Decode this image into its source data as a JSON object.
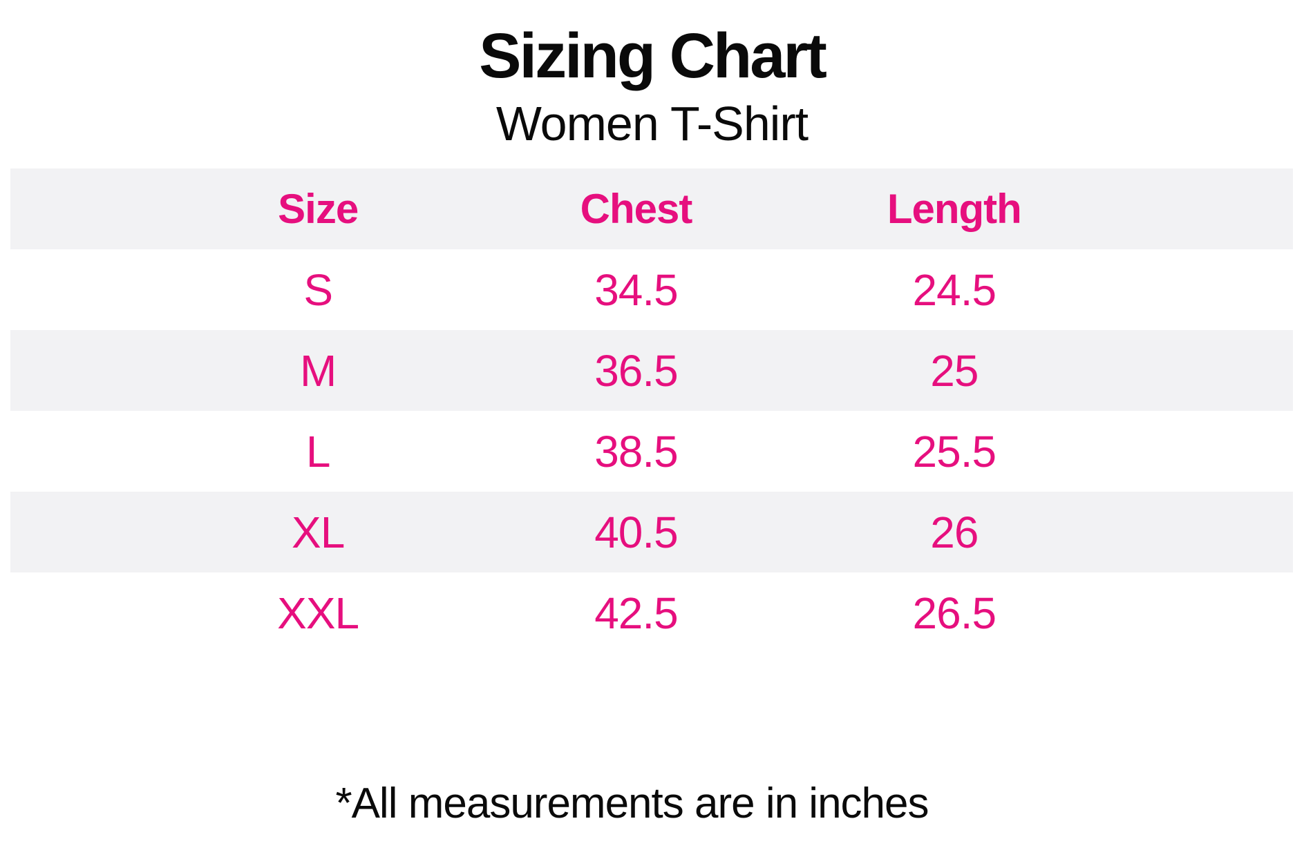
{
  "page": {
    "title": "Sizing Chart",
    "subtitle": "Women T-Shirt",
    "note": "*All measurements are in inches"
  },
  "table": {
    "columns": [
      "Size",
      "Chest",
      "Length"
    ],
    "rows": [
      [
        "S",
        "34.5",
        "24.5"
      ],
      [
        "M",
        "36.5",
        "25"
      ],
      [
        "L",
        "38.5",
        "25.5"
      ],
      [
        "XL",
        "40.5",
        "26"
      ],
      [
        "XXL",
        "42.5",
        "26.5"
      ]
    ]
  },
  "colors": {
    "accent_pink": "#E60F7E",
    "row_stripe_gray": "#F2F2F4",
    "text_black": "#0A0A0A"
  },
  "chart_data": {
    "type": "table",
    "title": "Sizing Chart",
    "subtitle": "Women T-Shirt",
    "columns": [
      "Size",
      "Chest",
      "Length"
    ],
    "rows": [
      [
        "S",
        34.5,
        24.5
      ],
      [
        "M",
        36.5,
        25
      ],
      [
        "L",
        38.5,
        25.5
      ],
      [
        "XL",
        40.5,
        26
      ],
      [
        "XXL",
        42.5,
        26.5
      ]
    ],
    "note": "*All measurements are in inches",
    "units": "inches",
    "layout": {
      "striped_rows": true,
      "stripe_pattern": "header, M and XL rows shaded",
      "text_alignment": "center"
    }
  }
}
